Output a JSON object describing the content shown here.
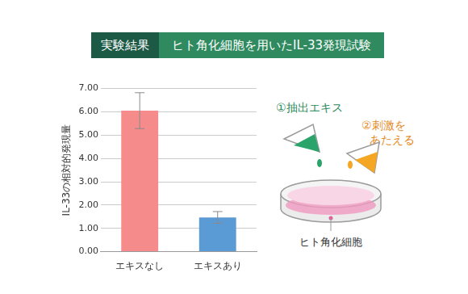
{
  "header": {
    "label": "実験結果",
    "title": "ヒト角化細胞を用いたIL-33発現試験"
  },
  "chart_data": {
    "type": "bar",
    "y_label": "IL-33の相対的発現量",
    "categories": [
      "エキスなし",
      "エキスあり"
    ],
    "values": [
      6.05,
      1.47
    ],
    "errors": [
      0.77,
      0.25
    ],
    "colors": [
      "#f68b8b",
      "#5b9bd5"
    ],
    "ylim": [
      0,
      7
    ],
    "yticks": [
      {
        "value": 0,
        "label": "0.00"
      },
      {
        "value": 1,
        "label": "1.00"
      },
      {
        "value": 2,
        "label": "2.00"
      },
      {
        "value": 3,
        "label": "3.00"
      },
      {
        "value": 4,
        "label": "4.00"
      },
      {
        "value": 5,
        "label": "5.00"
      },
      {
        "value": 6,
        "label": "6.00"
      },
      {
        "value": 7,
        "label": "7.00"
      }
    ],
    "grid": true
  },
  "diagram": {
    "step1": "①抽出エキス",
    "step2": [
      "②刺激を",
      "あたえる"
    ],
    "cells": "ヒト角化細胞"
  }
}
